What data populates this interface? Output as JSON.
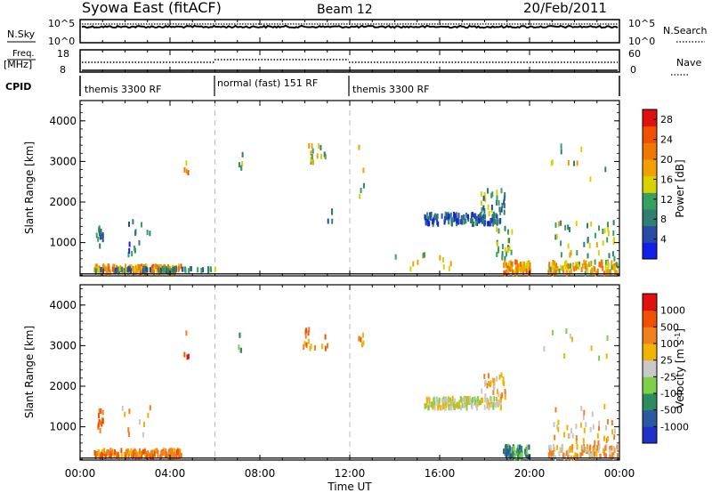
{
  "header": {
    "station": "Syowa East (fitACF)",
    "beam": "Beam 12",
    "date": "20/Feb/2011"
  },
  "strips": {
    "nsky_label": "N.Sky",
    "nsky_ticks": [
      "10^5",
      "10^0"
    ],
    "nsearch_label": "N.Search",
    "nsearch_ticks": [
      "10^5",
      "10^0"
    ],
    "freq_label_1": "Freq.",
    "freq_label_2": "[MHz]",
    "freq_ticks": [
      "18",
      "8"
    ],
    "nave_label": "Nave",
    "nave_ticks": [
      "60",
      "0"
    ],
    "cpid_label": "CPID",
    "cpid_segments": [
      {
        "name": "themis 3300 RF",
        "start_hour": 0,
        "end_hour": 6
      },
      {
        "name": "normal (fast) 151 RF",
        "start_hour": 6,
        "end_hour": 12
      },
      {
        "name": "themis 3300 RF",
        "start_hour": 12,
        "end_hour": 24
      }
    ]
  },
  "chart_data": [
    {
      "type": "heatmap",
      "title": "",
      "xlabel": "Time UT",
      "ylabel": "Slant Range [km]",
      "xlim": [
        0,
        24
      ],
      "ylim": [
        180,
        4500
      ],
      "x_ticks": [
        "00:00",
        "04:00",
        "08:00",
        "12:00",
        "16:00",
        "20:00",
        "00:00"
      ],
      "y_ticks": [
        "1000",
        "2000",
        "3000",
        "4000"
      ],
      "y_tick_values": [
        1000,
        2000,
        3000,
        4000
      ],
      "colorbar": {
        "label": "Power [dB]",
        "ticks": [
          "4",
          "8",
          "12",
          "16",
          "20",
          "24",
          "28"
        ],
        "tick_values": [
          4,
          8,
          12,
          16,
          20,
          24,
          28
        ],
        "range": [
          0,
          30
        ],
        "colors": [
          "#1020e8",
          "#2a4aa8",
          "#2e7f70",
          "#36a060",
          "#d8d200",
          "#f0a000",
          "#f07800",
          "#f05000",
          "#e01010"
        ]
      },
      "clusters": [
        {
          "t": [
            0.6,
            4.5
          ],
          "r": [
            250,
            420
          ],
          "v": 20,
          "n": 160
        },
        {
          "t": [
            0.6,
            6.0
          ],
          "r": [
            300,
            360
          ],
          "v": 8,
          "n": 60
        },
        {
          "t": [
            0.7,
            1.0
          ],
          "r": [
            900,
            1400
          ],
          "v": 8,
          "n": 14
        },
        {
          "t": [
            1.8,
            3.2
          ],
          "r": [
            700,
            1600
          ],
          "v": 6,
          "n": 14
        },
        {
          "t": [
            4.6,
            4.8
          ],
          "r": [
            2700,
            3350
          ],
          "v": 20,
          "n": 4
        },
        {
          "t": [
            7.0,
            7.2
          ],
          "r": [
            2800,
            3300
          ],
          "v": 10,
          "n": 5
        },
        {
          "t": [
            9.8,
            11.0
          ],
          "r": [
            2900,
            3400
          ],
          "v": 14,
          "n": 16
        },
        {
          "t": [
            10.9,
            11.2
          ],
          "r": [
            1500,
            1800
          ],
          "v": 6,
          "n": 4
        },
        {
          "t": [
            12.3,
            12.6
          ],
          "r": [
            2100,
            3400
          ],
          "v": 14,
          "n": 5
        },
        {
          "t": [
            15.3,
            18.7
          ],
          "r": [
            1450,
            1700
          ],
          "v": 5,
          "n": 140
        },
        {
          "t": [
            17.8,
            18.9
          ],
          "r": [
            1700,
            2300
          ],
          "v": 10,
          "n": 30
        },
        {
          "t": [
            18.5,
            19.2
          ],
          "r": [
            600,
            1400
          ],
          "v": 10,
          "n": 24
        },
        {
          "t": [
            18.8,
            20.0
          ],
          "r": [
            230,
            520
          ],
          "v": 20,
          "n": 70
        },
        {
          "t": [
            20.8,
            23.9
          ],
          "r": [
            230,
            520
          ],
          "v": 18,
          "n": 110
        },
        {
          "t": [
            21.0,
            23.8
          ],
          "r": [
            600,
            1500
          ],
          "v": 12,
          "n": 40
        },
        {
          "t": [
            20.6,
            23.6
          ],
          "r": [
            2500,
            3400
          ],
          "v": 12,
          "n": 10
        },
        {
          "t": [
            14.0,
            16.5
          ],
          "r": [
            250,
            700
          ],
          "v": 14,
          "n": 12
        }
      ]
    },
    {
      "type": "heatmap",
      "title": "",
      "xlabel": "Time UT",
      "ylabel": "Slant Range [km]",
      "xlim": [
        0,
        24
      ],
      "ylim": [
        180,
        4500
      ],
      "x_ticks": [
        "00:00",
        "04:00",
        "08:00",
        "12:00",
        "16:00",
        "20:00",
        "00:00"
      ],
      "y_ticks": [
        "1000",
        "2000",
        "3000",
        "4000"
      ],
      "y_tick_values": [
        1000,
        2000,
        3000,
        4000
      ],
      "colorbar": {
        "label": "Velocity [m s^-1]",
        "ticks": [
          "1000",
          "500",
          "100",
          "25",
          "-25",
          "-100",
          "-500",
          "-1000"
        ],
        "colors": [
          "#2030c8",
          "#2a5aa0",
          "#2e8a60",
          "#7ed04a",
          "#c8c8c8",
          "#f0b400",
          "#f08020",
          "#f05000",
          "#e01010"
        ]
      },
      "clusters": [
        {
          "t": [
            0.6,
            4.5
          ],
          "r": [
            250,
            420
          ],
          "v": 6,
          "n": 170
        },
        {
          "t": [
            0.7,
            1.0
          ],
          "r": [
            900,
            1400
          ],
          "v": 6,
          "n": 14
        },
        {
          "t": [
            1.8,
            3.2
          ],
          "r": [
            700,
            1600
          ],
          "v": 5,
          "n": 10
        },
        {
          "t": [
            4.6,
            4.8
          ],
          "r": [
            2700,
            3350
          ],
          "v": 7,
          "n": 4
        },
        {
          "t": [
            7.0,
            7.2
          ],
          "r": [
            2800,
            3300
          ],
          "v": 3,
          "n": 5
        },
        {
          "t": [
            9.8,
            11.0
          ],
          "r": [
            2900,
            3400
          ],
          "v": 6,
          "n": 16
        },
        {
          "t": [
            12.3,
            12.6
          ],
          "r": [
            2100,
            3400
          ],
          "v": 6,
          "n": 5
        },
        {
          "t": [
            15.3,
            18.7
          ],
          "r": [
            1450,
            1700
          ],
          "v": 4,
          "n": 150
        },
        {
          "t": [
            17.8,
            18.9
          ],
          "r": [
            1700,
            2300
          ],
          "v": 5,
          "n": 30
        },
        {
          "t": [
            18.8,
            20.0
          ],
          "r": [
            230,
            520
          ],
          "v": 2,
          "n": 70
        },
        {
          "t": [
            20.8,
            23.9
          ],
          "r": [
            230,
            520
          ],
          "v": 5,
          "n": 110
        },
        {
          "t": [
            21.0,
            23.8
          ],
          "r": [
            600,
            1500
          ],
          "v": 5,
          "n": 40
        },
        {
          "t": [
            20.6,
            23.6
          ],
          "r": [
            2500,
            3400
          ],
          "v": 4,
          "n": 10
        }
      ]
    }
  ]
}
